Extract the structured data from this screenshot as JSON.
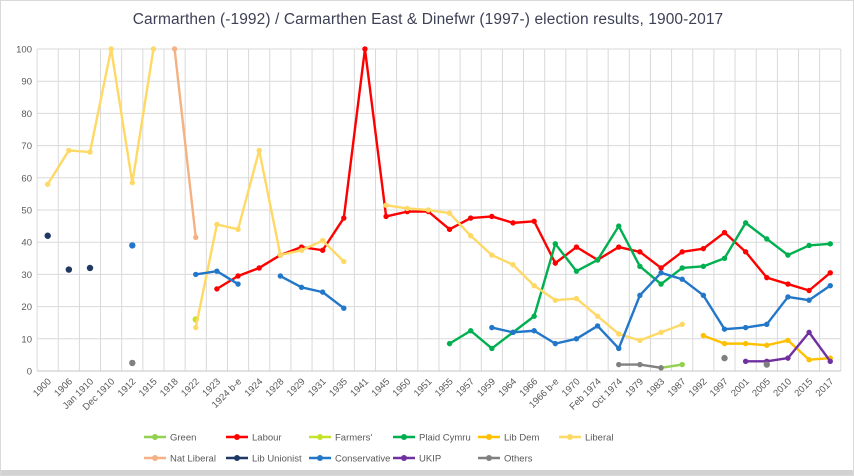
{
  "chart_data": {
    "type": "line",
    "title": "Carmarthen (-1992) / Carmarthen East & Dinefwr (1997-) election results, 1900-2017",
    "xlabel": "",
    "ylabel": "",
    "ylim": [
      0,
      100
    ],
    "yticks": [
      0,
      10,
      20,
      30,
      40,
      50,
      60,
      70,
      80,
      90,
      100
    ],
    "grid": true,
    "legend_position": "bottom",
    "categories": [
      "1900",
      "1906",
      "Jan 1910",
      "Dec 1910",
      "1912",
      "1915",
      "1918",
      "1922",
      "1923",
      "1924 b-e",
      "1924",
      "1928",
      "1929",
      "1931",
      "1935",
      "1941",
      "1945",
      "1950",
      "1951",
      "1955",
      "1957",
      "1959",
      "1964",
      "1966",
      "1966 b-e",
      "1970",
      "Feb 1974",
      "Oct 1974",
      "1979",
      "1983",
      "1987",
      "1992",
      "1997",
      "2001",
      "2005",
      "2010",
      "2015",
      "2017"
    ],
    "series": [
      {
        "name": "Green",
        "color": "#92d050",
        "markers_only": false,
        "values": [
          null,
          null,
          null,
          null,
          null,
          null,
          null,
          null,
          null,
          null,
          null,
          null,
          null,
          null,
          null,
          null,
          null,
          null,
          null,
          null,
          null,
          null,
          null,
          null,
          null,
          null,
          null,
          null,
          null,
          1,
          2,
          null,
          null,
          null,
          null,
          null,
          null,
          null
        ]
      },
      {
        "name": "Labour",
        "color": "#ff0000",
        "markers_only": false,
        "values": [
          null,
          null,
          null,
          null,
          null,
          null,
          null,
          null,
          25.5,
          29.5,
          32,
          36,
          38.5,
          37.5,
          47.5,
          100,
          48,
          49.5,
          49.5,
          44,
          47.5,
          48,
          46,
          46.5,
          33.5,
          38.5,
          34.5,
          38.5,
          37,
          32,
          37,
          38,
          43,
          37,
          29,
          27,
          25,
          30.5
        ]
      },
      {
        "name": "Farmers'",
        "color": "#c7e129",
        "markers_only": false,
        "values": [
          null,
          null,
          null,
          null,
          null,
          null,
          null,
          16,
          null,
          null,
          null,
          null,
          null,
          null,
          null,
          null,
          null,
          null,
          null,
          null,
          null,
          null,
          null,
          null,
          null,
          null,
          null,
          null,
          null,
          null,
          null,
          null,
          null,
          null,
          null,
          null,
          null,
          null
        ]
      },
      {
        "name": "Plaid Cymru",
        "color": "#00b050",
        "markers_only": false,
        "values": [
          null,
          null,
          null,
          null,
          null,
          null,
          null,
          null,
          null,
          null,
          null,
          null,
          null,
          null,
          null,
          null,
          null,
          null,
          null,
          8.5,
          12.5,
          7,
          12,
          17,
          39.5,
          31,
          34.5,
          45,
          32.5,
          27,
          32,
          32.5,
          35,
          46,
          41,
          36,
          39,
          39.5
        ]
      },
      {
        "name": "Lib Dem",
        "color": "#ffc000",
        "markers_only": false,
        "values": [
          null,
          null,
          null,
          null,
          null,
          null,
          null,
          null,
          null,
          null,
          null,
          null,
          null,
          null,
          null,
          null,
          null,
          null,
          null,
          null,
          null,
          null,
          null,
          null,
          null,
          null,
          null,
          null,
          null,
          null,
          null,
          11,
          8.5,
          8.5,
          8,
          9.5,
          3.5,
          4
        ]
      },
      {
        "name": "Liberal",
        "color": "#ffd966",
        "markers_only": false,
        "values": [
          58,
          68.5,
          68,
          100,
          58.5,
          100,
          null,
          13.5,
          45.5,
          44,
          68.5,
          36,
          37.5,
          40.5,
          34,
          null,
          51.5,
          50.5,
          50,
          49,
          42,
          36,
          33,
          26.5,
          22,
          22.5,
          17,
          11.5,
          9.5,
          12,
          14.5,
          null,
          null,
          null,
          null,
          null,
          null,
          null
        ]
      },
      {
        "name": "Nat Liberal",
        "color": "#f4b183",
        "markers_only": false,
        "values": [
          null,
          null,
          null,
          null,
          null,
          null,
          100,
          41.5,
          null,
          null,
          null,
          null,
          null,
          null,
          null,
          null,
          null,
          null,
          null,
          null,
          null,
          null,
          null,
          null,
          null,
          null,
          null,
          null,
          null,
          null,
          null,
          null,
          null,
          null,
          null,
          null,
          null,
          null
        ]
      },
      {
        "name": "Lib Unionist",
        "color": "#1f3864",
        "markers_only": true,
        "values": [
          42,
          31.5,
          32,
          null,
          null,
          null,
          null,
          null,
          null,
          null,
          null,
          null,
          null,
          null,
          null,
          null,
          null,
          null,
          null,
          null,
          null,
          null,
          null,
          null,
          null,
          null,
          null,
          null,
          null,
          null,
          null,
          null,
          null,
          null,
          null,
          null,
          null,
          null
        ]
      },
      {
        "name": "Conservative",
        "color": "#2277c9",
        "markers_only": false,
        "values": [
          null,
          null,
          null,
          null,
          39,
          null,
          null,
          30,
          31,
          27,
          null,
          29.5,
          26,
          24.5,
          19.5,
          null,
          null,
          null,
          null,
          null,
          null,
          13.5,
          12,
          12.5,
          8.5,
          10,
          14,
          7,
          23.5,
          30.5,
          28.5,
          23.5,
          13,
          13.5,
          14.5,
          23,
          22,
          26.5
        ]
      },
      {
        "name": "UKIP",
        "color": "#7030a0",
        "markers_only": false,
        "values": [
          null,
          null,
          null,
          null,
          null,
          null,
          null,
          null,
          null,
          null,
          null,
          null,
          null,
          null,
          null,
          null,
          null,
          null,
          null,
          null,
          null,
          null,
          null,
          null,
          null,
          null,
          null,
          null,
          null,
          null,
          null,
          null,
          null,
          3,
          3,
          4,
          12,
          3
        ]
      },
      {
        "name": "Others",
        "color": "#808080",
        "markers_only": false,
        "values": [
          null,
          null,
          null,
          null,
          2.5,
          null,
          null,
          null,
          null,
          null,
          null,
          null,
          null,
          null,
          null,
          null,
          null,
          null,
          null,
          null,
          null,
          null,
          null,
          null,
          null,
          null,
          null,
          2,
          2,
          1,
          null,
          null,
          4,
          null,
          2,
          null,
          null,
          null
        ]
      }
    ],
    "legend_rows": [
      [
        "Green",
        "Labour",
        "Farmers'",
        "Plaid Cymru",
        "Lib Dem",
        "Liberal"
      ],
      [
        "Nat Liberal",
        "Lib Unionist",
        "Conservative",
        "UKIP",
        "Others"
      ]
    ],
    "colors": {
      "grid": "#d9d9d9",
      "axis_text": "#595959",
      "title_text": "#3e4156"
    }
  }
}
